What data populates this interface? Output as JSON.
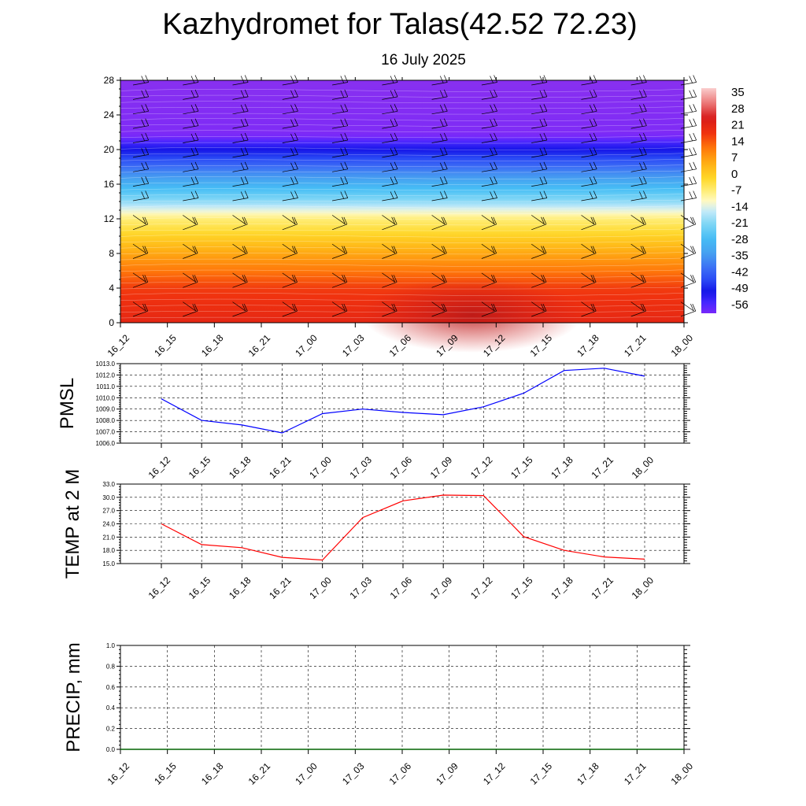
{
  "title": "Kazhydromet for Talas(42.52 72.23)",
  "subtitle": "16 July 2025",
  "times": [
    "16_12",
    "16_15",
    "16_18",
    "16_21",
    "17_00",
    "17_03",
    "17_06",
    "17_09",
    "17_12",
    "17_15",
    "17_18",
    "17_21",
    "18_00"
  ],
  "chart_data": [
    {
      "type": "heatmap",
      "name": "cross-section",
      "ylim": [
        0,
        28
      ],
      "yticks": [
        "0",
        "4",
        "8",
        "12",
        "16",
        "20",
        "24",
        "28"
      ],
      "xticks": [
        "16_12",
        "16_15",
        "16_18",
        "16_21",
        "17_00",
        "17_03",
        "17_06",
        "17_09",
        "17_12",
        "17_15",
        "17_18",
        "17_21",
        "18_00"
      ],
      "colorbar": {
        "labels": [
          "35",
          "28",
          "21",
          "14",
          "7",
          "0",
          "-7",
          "-14",
          "-21",
          "-28",
          "-35",
          "-42",
          "-49",
          "-56"
        ],
        "range": [
          -63,
          42
        ]
      },
      "temperature_profile": [
        {
          "h": 0,
          "t": 24
        },
        {
          "h": 4,
          "t": 20
        },
        {
          "h": 8,
          "t": 8
        },
        {
          "h": 12,
          "t": -6
        },
        {
          "h": 14,
          "t": -20
        },
        {
          "h": 18,
          "t": -42
        },
        {
          "h": 20.5,
          "t": -56
        },
        {
          "h": 22,
          "t": -66
        },
        {
          "h": 28,
          "t": -70
        }
      ],
      "wind_barbs": true
    },
    {
      "type": "line",
      "name": "pmsl",
      "ylabel": "PMSL",
      "ylim": [
        1006.0,
        1013.0
      ],
      "yticks": [
        "1006.0",
        "1007.0",
        "1008.0",
        "1009.0",
        "1010.0",
        "1011.0",
        "1012.0",
        "1013.0"
      ],
      "x": [
        "16_12",
        "16_15",
        "16_18",
        "16_21",
        "17_00",
        "17_03",
        "17_06",
        "17_09",
        "17_12",
        "17_15",
        "17_18",
        "17_21",
        "18_00"
      ],
      "values": [
        1009.9,
        1008.0,
        1007.6,
        1006.9,
        1008.6,
        1009.0,
        1008.7,
        1008.5,
        1009.2,
        1010.4,
        1012.4,
        1012.6,
        1011.9
      ],
      "color": "#0000ff"
    },
    {
      "type": "line",
      "name": "temp",
      "ylabel": "TEMP at 2 M",
      "ylim": [
        15.0,
        33.0
      ],
      "yticks": [
        "15.0",
        "18.0",
        "21.0",
        "24.0",
        "27.0",
        "30.0",
        "33.0"
      ],
      "x": [
        "16_12",
        "16_15",
        "16_18",
        "16_21",
        "17_00",
        "17_03",
        "17_06",
        "17_09",
        "17_12",
        "17_15",
        "17_18",
        "17_21",
        "18_00"
      ],
      "values": [
        24.0,
        19.3,
        18.6,
        16.4,
        15.8,
        25.4,
        29.2,
        30.5,
        30.4,
        21.1,
        18.0,
        16.5,
        16.0
      ],
      "color": "#ff0000"
    },
    {
      "type": "line",
      "name": "precip",
      "ylabel": "PRECIP, mm",
      "ylim": [
        0.0,
        1.0
      ],
      "yticks": [
        "0.0",
        "0.2",
        "0.4",
        "0.6",
        "0.8",
        "1.0"
      ],
      "x": [
        "16_12",
        "16_15",
        "16_18",
        "16_21",
        "17_00",
        "17_03",
        "17_06",
        "17_09",
        "17_12",
        "17_15",
        "17_18",
        "17_21",
        "18_00"
      ],
      "values": [
        0,
        0,
        0,
        0,
        0,
        0,
        0,
        0,
        0,
        0,
        0,
        0,
        0
      ],
      "color": "#006400"
    }
  ]
}
